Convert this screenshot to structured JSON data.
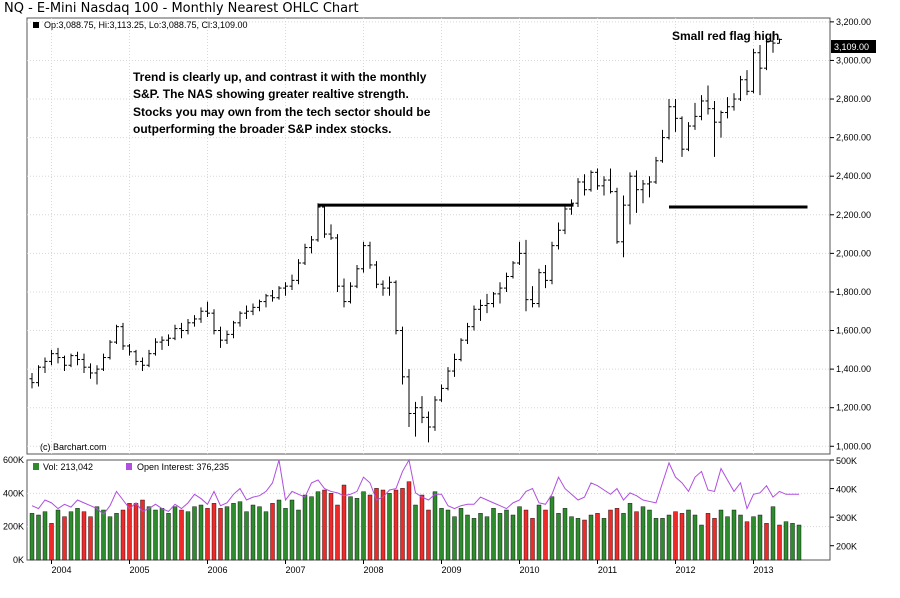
{
  "title": "NQ - E-Mini Nasdaq 100 - Monthly Nearest OHLC Chart",
  "price_legend": "Op:3,088.75, Hi:3,113.25, Lo:3,088.75, Cl:3,109.00",
  "annotation_text": [
    "Trend is clearly up, and contrast it with the monthly",
    "S&P.  The NAS showing greater realtive strength.",
    "Stocks you may own from the tech sector should be",
    "outperforming the broader S&P index stocks."
  ],
  "flag_label": "Small red flag high",
  "last_price_label": "3,109.00",
  "copyright": "(c) Barchart.com",
  "vol_legend": "Vol: 213,042",
  "oi_legend": "Open Interest: 376,235",
  "colors": {
    "bar": "#000000",
    "vol_up": "#2e8b2e",
    "vol_down": "#ee2b2b",
    "oi_line": "#b04fe0",
    "vol_legend_box": "#2e8b2e",
    "oi_legend_box": "#b04fe0",
    "grid": "#d8d8d8",
    "trendline": "#000000"
  },
  "chart_data": [
    {
      "type": "ohlc",
      "yticks": [
        1000,
        1200,
        1400,
        1600,
        1800,
        2000,
        2200,
        2400,
        2600,
        2800,
        3000,
        3200
      ],
      "ytick_labels": [
        "1,000.00",
        "1,200.00",
        "1,400.00",
        "1,600.00",
        "1,800.00",
        "2,000.00",
        "2,200.00",
        "2,400.00",
        "2,600.00",
        "2,800.00",
        "3,000.00",
        "3,200.00"
      ],
      "ylim": [
        960,
        3220
      ],
      "xlabels": [
        "2004",
        "2005",
        "2006",
        "2007",
        "2008",
        "2009",
        "2010",
        "2011",
        "2012",
        "2013"
      ],
      "start_month": "2003-10",
      "ohlc": [
        [
          1350,
          1380,
          1300,
          1330
        ],
        [
          1330,
          1420,
          1310,
          1410
        ],
        [
          1410,
          1460,
          1380,
          1440
        ],
        [
          1440,
          1500,
          1420,
          1480
        ],
        [
          1480,
          1510,
          1430,
          1460
        ],
        [
          1460,
          1470,
          1390,
          1420
        ],
        [
          1420,
          1480,
          1410,
          1470
        ],
        [
          1470,
          1490,
          1420,
          1450
        ],
        [
          1450,
          1480,
          1380,
          1410
        ],
        [
          1410,
          1430,
          1350,
          1380
        ],
        [
          1380,
          1420,
          1320,
          1400
        ],
        [
          1400,
          1480,
          1390,
          1460
        ],
        [
          1460,
          1550,
          1450,
          1540
        ],
        [
          1540,
          1630,
          1530,
          1620
        ],
        [
          1620,
          1640,
          1500,
          1520
        ],
        [
          1520,
          1530,
          1470,
          1490
        ],
        [
          1490,
          1500,
          1420,
          1440
        ],
        [
          1440,
          1460,
          1390,
          1420
        ],
        [
          1420,
          1500,
          1410,
          1480
        ],
        [
          1480,
          1560,
          1470,
          1540
        ],
        [
          1540,
          1570,
          1500,
          1550
        ],
        [
          1550,
          1580,
          1520,
          1560
        ],
        [
          1560,
          1630,
          1550,
          1610
        ],
        [
          1610,
          1640,
          1560,
          1600
        ],
        [
          1600,
          1660,
          1580,
          1640
        ],
        [
          1640,
          1680,
          1620,
          1660
        ],
        [
          1660,
          1720,
          1640,
          1700
        ],
        [
          1700,
          1750,
          1670,
          1690
        ],
        [
          1690,
          1710,
          1580,
          1600
        ],
        [
          1600,
          1620,
          1510,
          1550
        ],
        [
          1550,
          1600,
          1530,
          1580
        ],
        [
          1580,
          1650,
          1560,
          1640
        ],
        [
          1640,
          1700,
          1620,
          1690
        ],
        [
          1690,
          1730,
          1660,
          1700
        ],
        [
          1700,
          1740,
          1680,
          1720
        ],
        [
          1720,
          1760,
          1700,
          1750
        ],
        [
          1750,
          1790,
          1720,
          1780
        ],
        [
          1780,
          1810,
          1750,
          1770
        ],
        [
          1770,
          1830,
          1760,
          1820
        ],
        [
          1820,
          1850,
          1780,
          1830
        ],
        [
          1830,
          1890,
          1810,
          1860
        ],
        [
          1860,
          1970,
          1840,
          1950
        ],
        [
          1950,
          2050,
          1940,
          2030
        ],
        [
          2030,
          2090,
          2000,
          2070
        ],
        [
          2070,
          2260,
          2060,
          2240
        ],
        [
          2240,
          2250,
          2080,
          2100
        ],
        [
          2100,
          2150,
          2070,
          2080
        ],
        [
          2080,
          2100,
          1800,
          1830
        ],
        [
          1830,
          1870,
          1720,
          1750
        ],
        [
          1750,
          1850,
          1740,
          1830
        ],
        [
          1830,
          1940,
          1820,
          1920
        ],
        [
          1920,
          2060,
          1900,
          2040
        ],
        [
          2040,
          2060,
          1920,
          1940
        ],
        [
          1940,
          1960,
          1820,
          1840
        ],
        [
          1840,
          1860,
          1780,
          1820
        ],
        [
          1820,
          1880,
          1780,
          1850
        ],
        [
          1850,
          1860,
          1580,
          1600
        ],
        [
          1600,
          1620,
          1320,
          1360
        ],
        [
          1360,
          1400,
          1100,
          1170
        ],
        [
          1170,
          1230,
          1050,
          1200
        ],
        [
          1200,
          1260,
          1120,
          1150
        ],
        [
          1150,
          1180,
          1020,
          1100
        ],
        [
          1100,
          1260,
          1080,
          1240
        ],
        [
          1240,
          1320,
          1230,
          1300
        ],
        [
          1300,
          1410,
          1290,
          1390
        ],
        [
          1390,
          1480,
          1360,
          1450
        ],
        [
          1450,
          1560,
          1440,
          1550
        ],
        [
          1550,
          1640,
          1530,
          1620
        ],
        [
          1620,
          1730,
          1600,
          1710
        ],
        [
          1710,
          1760,
          1650,
          1730
        ],
        [
          1730,
          1790,
          1690,
          1740
        ],
        [
          1740,
          1800,
          1720,
          1790
        ],
        [
          1790,
          1850,
          1740,
          1820
        ],
        [
          1820,
          1900,
          1800,
          1880
        ],
        [
          1880,
          1960,
          1870,
          1950
        ],
        [
          1950,
          2060,
          1940,
          2000
        ],
        [
          2000,
          2070,
          1700,
          1760
        ],
        [
          1760,
          1830,
          1720,
          1740
        ],
        [
          1740,
          1920,
          1720,
          1900
        ],
        [
          1900,
          1940,
          1820,
          1860
        ],
        [
          1860,
          2060,
          1840,
          2040
        ],
        [
          2040,
          2160,
          2020,
          2120
        ],
        [
          2120,
          2250,
          2100,
          2230
        ],
        [
          2230,
          2280,
          2200,
          2260
        ],
        [
          2260,
          2390,
          2240,
          2370
        ],
        [
          2370,
          2410,
          2300,
          2330
        ],
        [
          2330,
          2430,
          2320,
          2420
        ],
        [
          2420,
          2440,
          2330,
          2350
        ],
        [
          2350,
          2400,
          2300,
          2380
        ],
        [
          2380,
          2440,
          2310,
          2320
        ],
        [
          2320,
          2340,
          2050,
          2060
        ],
        [
          2060,
          2300,
          1980,
          2250
        ],
        [
          2250,
          2420,
          2150,
          2400
        ],
        [
          2400,
          2430,
          2210,
          2330
        ],
        [
          2330,
          2380,
          2260,
          2360
        ],
        [
          2360,
          2400,
          2290,
          2370
        ],
        [
          2370,
          2500,
          2360,
          2480
        ],
        [
          2480,
          2640,
          2470,
          2600
        ],
        [
          2600,
          2800,
          2590,
          2760
        ],
        [
          2760,
          2800,
          2630,
          2700
        ],
        [
          2700,
          2710,
          2500,
          2540
        ],
        [
          2540,
          2680,
          2530,
          2660
        ],
        [
          2660,
          2780,
          2640,
          2710
        ],
        [
          2710,
          2820,
          2690,
          2790
        ],
        [
          2790,
          2870,
          2720,
          2750
        ],
        [
          2750,
          2790,
          2500,
          2680
        ],
        [
          2680,
          2740,
          2600,
          2730
        ],
        [
          2730,
          2810,
          2700,
          2760
        ],
        [
          2760,
          2830,
          2740,
          2800
        ],
        [
          2800,
          2920,
          2790,
          2900
        ],
        [
          2900,
          2950,
          2820,
          2840
        ],
        [
          2840,
          3060,
          2830,
          3040
        ],
        [
          3040,
          3080,
          2820,
          2960
        ],
        [
          2960,
          3130,
          2950,
          3100
        ],
        [
          3100,
          3150,
          3040,
          3090
        ],
        [
          3088.75,
          3113.25,
          3088.75,
          3109
        ]
      ],
      "horizontal_lines": [
        {
          "y": 2250,
          "from_index": 44,
          "to_index": 83
        },
        {
          "y": 2240,
          "from_index": 98,
          "to_index": 119
        }
      ]
    },
    {
      "type": "bar",
      "ylim": [
        0,
        600000
      ],
      "yticks_left": [
        0,
        200000,
        400000,
        600000
      ],
      "ytick_labels_left": [
        "0K",
        "200K",
        "400K",
        "600K"
      ],
      "yticks_right": [
        200000,
        300000,
        400000,
        500000
      ],
      "ytick_labels_right": [
        "200K",
        "300K",
        "400K",
        "500K"
      ],
      "series": [
        {
          "name": "Vol",
          "values": [
            280000,
            270000,
            290000,
            220000,
            300000,
            260000,
            290000,
            310000,
            290000,
            260000,
            320000,
            300000,
            260000,
            280000,
            300000,
            340000,
            340000,
            360000,
            320000,
            300000,
            310000,
            280000,
            320000,
            300000,
            290000,
            320000,
            330000,
            310000,
            340000,
            310000,
            320000,
            340000,
            350000,
            290000,
            330000,
            320000,
            290000,
            340000,
            360000,
            310000,
            360000,
            300000,
            390000,
            380000,
            410000,
            420000,
            400000,
            330000,
            450000,
            380000,
            370000,
            410000,
            390000,
            430000,
            420000,
            400000,
            420000,
            430000,
            470000,
            330000,
            390000,
            300000,
            410000,
            310000,
            300000,
            260000,
            310000,
            270000,
            250000,
            280000,
            260000,
            310000,
            280000,
            300000,
            270000,
            320000,
            300000,
            250000,
            330000,
            300000,
            380000,
            280000,
            310000,
            260000,
            250000,
            240000,
            270000,
            280000,
            250000,
            300000,
            310000,
            280000,
            340000,
            290000,
            320000,
            300000,
            250000,
            250000,
            270000,
            290000,
            280000,
            300000,
            270000,
            210000,
            280000,
            250000,
            300000,
            260000,
            300000,
            270000,
            230000,
            260000,
            270000,
            220000,
            320000,
            210000,
            230000,
            220000,
            210000
          ],
          "up": [
            true,
            true,
            true,
            false,
            true,
            false,
            true,
            true,
            false,
            false,
            true,
            true,
            true,
            true,
            false,
            false,
            false,
            false,
            true,
            true,
            true,
            true,
            true,
            false,
            true,
            true,
            true,
            false,
            false,
            false,
            true,
            true,
            true,
            true,
            true,
            true,
            true,
            false,
            true,
            true,
            true,
            true,
            true,
            true,
            true,
            false,
            false,
            false,
            false,
            true,
            true,
            true,
            false,
            false,
            false,
            true,
            false,
            false,
            false,
            true,
            false,
            false,
            true,
            true,
            true,
            true,
            true,
            true,
            true,
            true,
            true,
            true,
            true,
            true,
            true,
            true,
            false,
            false,
            true,
            false,
            true,
            true,
            true,
            true,
            true,
            false,
            true,
            false,
            true,
            false,
            false,
            true,
            true,
            false,
            true,
            true,
            true,
            true,
            true,
            false,
            false,
            true,
            true,
            true,
            false,
            false,
            true,
            true,
            true,
            true,
            false,
            true,
            true,
            false,
            true,
            false,
            true,
            true,
            true
          ]
        },
        {
          "name": "Open Interest",
          "values": [
            340000,
            330000,
            360000,
            350000,
            330000,
            345000,
            335000,
            360000,
            350000,
            340000,
            330000,
            310000,
            340000,
            390000,
            360000,
            330000,
            350000,
            320000,
            330000,
            345000,
            330000,
            320000,
            345000,
            330000,
            350000,
            380000,
            365000,
            345000,
            390000,
            340000,
            350000,
            380000,
            400000,
            360000,
            370000,
            375000,
            390000,
            420000,
            500000,
            360000,
            390000,
            380000,
            370000,
            420000,
            430000,
            400000,
            390000,
            385000,
            375000,
            380000,
            390000,
            440000,
            420000,
            360000,
            370000,
            395000,
            400000,
            460000,
            500000,
            385000,
            370000,
            360000,
            380000,
            380000,
            340000,
            330000,
            340000,
            345000,
            345000,
            370000,
            360000,
            350000,
            340000,
            330000,
            350000,
            360000,
            390000,
            400000,
            350000,
            345000,
            380000,
            440000,
            400000,
            380000,
            360000,
            370000,
            420000,
            410000,
            395000,
            380000,
            400000,
            360000,
            385000,
            375000,
            360000,
            355000,
            350000,
            420000,
            490000,
            440000,
            420000,
            390000,
            440000,
            460000,
            395000,
            390000,
            470000,
            430000,
            390000,
            420000,
            330000,
            380000,
            385000,
            410000,
            370000,
            390000,
            380000,
            380000,
            380000
          ]
        }
      ]
    }
  ]
}
